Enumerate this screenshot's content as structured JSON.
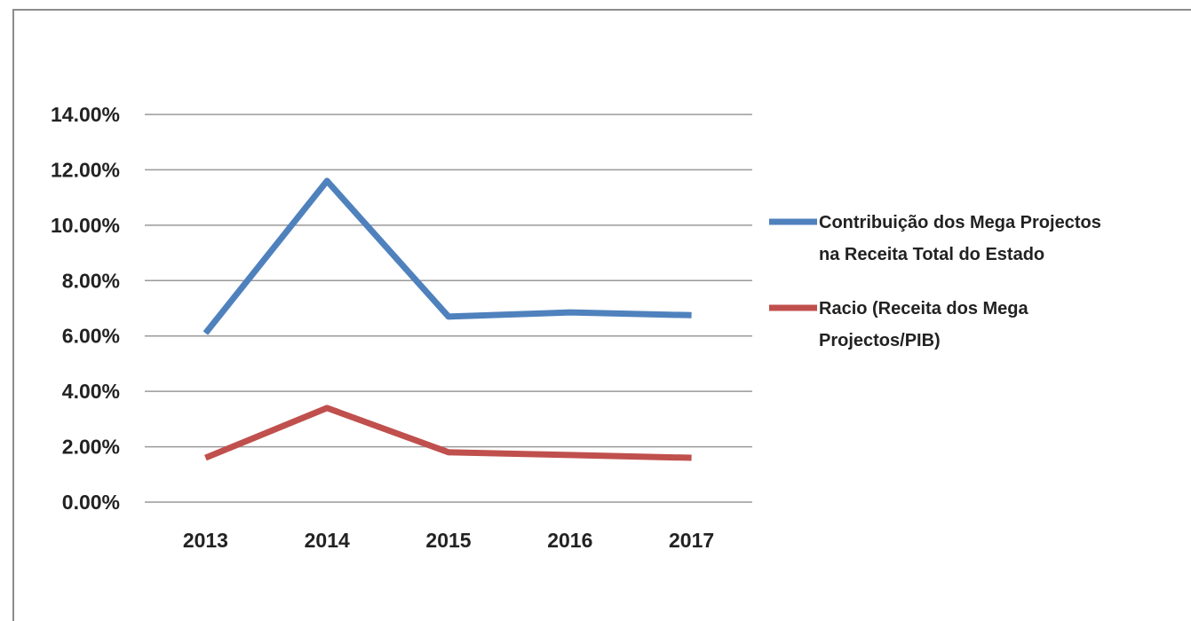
{
  "chart_data": {
    "type": "line",
    "categories": [
      "2013",
      "2014",
      "2015",
      "2016",
      "2017"
    ],
    "series": [
      {
        "name": "Contribuição  dos Mega Projectos na Receita Total do Estado",
        "name_lines": [
          "Contribuição  dos Mega Projectos",
          "na Receita Total do Estado"
        ],
        "values": [
          6.1,
          11.6,
          6.7,
          6.85,
          6.75
        ],
        "color": "#4f81bd"
      },
      {
        "name": "Racio  (Receita dos Mega Projectos/PIB)",
        "name_lines": [
          "Racio  (Receita dos Mega",
          "Projectos/PIB)"
        ],
        "values": [
          1.6,
          3.4,
          1.8,
          1.7,
          1.6
        ],
        "color": "#c0504d"
      }
    ],
    "yticks": [
      "0.00%",
      "2.00%",
      "4.00%",
      "6.00%",
      "8.00%",
      "10.00%",
      "12.00%",
      "14.00%"
    ],
    "ylim": [
      0,
      14
    ],
    "grid": true,
    "legend_position": "right"
  }
}
